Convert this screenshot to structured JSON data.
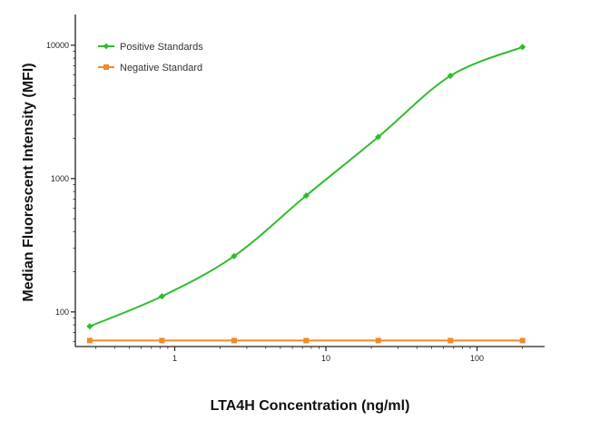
{
  "chart_data": {
    "type": "line",
    "xscale": "log",
    "yscale": "log",
    "xlabel": "LTA4H Concentration (ng/ml)",
    "ylabel": "Median  Fluorescent Intensity  (MFI)",
    "xlim": [
      0.22,
      280
    ],
    "ylim": [
      55,
      17000
    ],
    "xticks": [
      {
        "value": 1,
        "label": "1"
      },
      {
        "value": 10,
        "label": "10"
      },
      {
        "value": 100,
        "label": "100"
      }
    ],
    "yticks": [
      {
        "value": 100,
        "label": "100"
      },
      {
        "value": 1000,
        "label": "1000"
      },
      {
        "value": 10000,
        "label": "10000"
      }
    ],
    "legend_position": "top-left",
    "grid": false,
    "series": [
      {
        "name": "Positive Standards",
        "color": "#2ebd2e",
        "marker": "diamond",
        "x": [
          0.274,
          0.823,
          2.47,
          7.41,
          22.2,
          66.7,
          200
        ],
        "y": [
          78,
          131,
          262,
          745,
          2050,
          5900,
          9700
        ]
      },
      {
        "name": "Negative Standard",
        "color": "#f08a2a",
        "marker": "square",
        "x": [
          0.274,
          0.823,
          2.47,
          7.41,
          22.2,
          66.7,
          200
        ],
        "y": [
          61,
          61,
          61,
          61,
          61,
          61,
          61
        ]
      }
    ]
  }
}
